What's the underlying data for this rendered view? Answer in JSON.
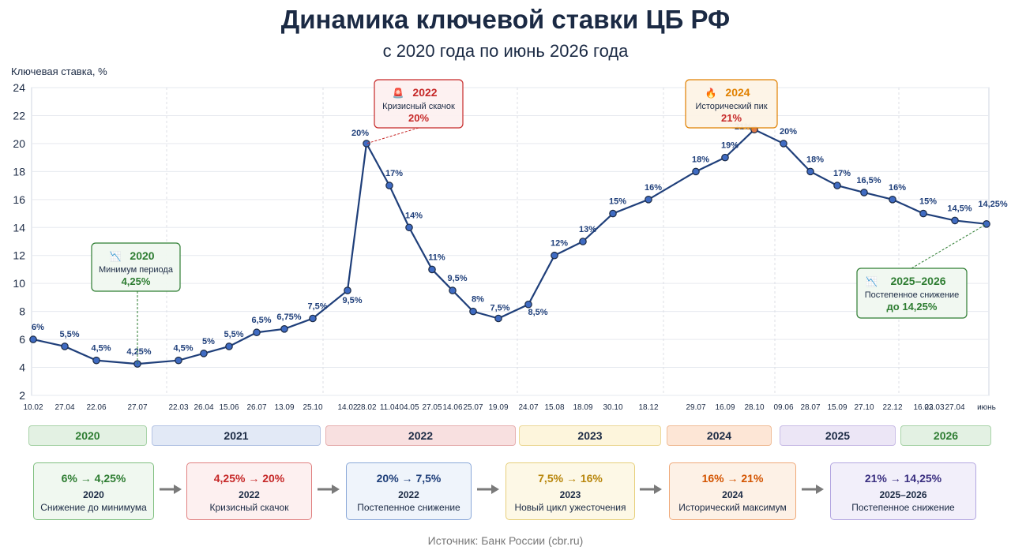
{
  "page": {
    "title": "Динамика ключевой ставки ЦБ РФ",
    "subtitle": "с 2020 года по июнь 2026 года",
    "source": "Источник: Банк России (cbr.ru)"
  },
  "chart_data": {
    "type": "line",
    "title": "Динамика ключевой ставки ЦБ РФ",
    "subtitle": "с 2020 года по июнь 2026 года",
    "ylabel": "Ключевая ставка, %",
    "ylim": [
      2,
      24
    ],
    "yticks": [
      2,
      4,
      6,
      8,
      10,
      12,
      14,
      16,
      18,
      20,
      22,
      24
    ],
    "grid": true,
    "line_color": "#1f3f7a",
    "points": [
      {
        "x": "10.02",
        "y": 6,
        "label": "6%",
        "tick": "10.02"
      },
      {
        "x": "27.04",
        "y": 5.5,
        "label": "5,5%",
        "tick": "27.04"
      },
      {
        "x": "22.06",
        "y": 4.5,
        "label": "4,5%",
        "tick": "22.06"
      },
      {
        "x": "27.07",
        "y": 4.25,
        "label": "4,25%",
        "tick": "27.07"
      },
      {
        "x": "22.03",
        "y": 4.5,
        "label": "4,5%",
        "tick": "22.03"
      },
      {
        "x": "26.04",
        "y": 5,
        "label": "5%",
        "tick": "26.04"
      },
      {
        "x": "15.06",
        "y": 5.5,
        "label": "5,5%",
        "tick": "15.06"
      },
      {
        "x": "26.07",
        "y": 6.5,
        "label": "6,5%",
        "tick": "26.07"
      },
      {
        "x": "13.09",
        "y": 6.75,
        "label": "6,75%",
        "tick": "13.09"
      },
      {
        "x": "25.10",
        "y": 7.5,
        "label": "7,5%",
        "tick": "25.10"
      },
      {
        "x": "14.02",
        "y": 9.5,
        "label": "9,5%",
        "tick": "14.02"
      },
      {
        "x": "28.02",
        "y": 20,
        "label": "20%",
        "tick": "28.02"
      },
      {
        "x": "11.04",
        "y": 17,
        "label": "17%",
        "tick": "11.04"
      },
      {
        "x": "04.05",
        "y": 14,
        "label": "14%",
        "tick": "04.05"
      },
      {
        "x": "27.05",
        "y": 11,
        "label": "11%",
        "tick": "27.05"
      },
      {
        "x": "14.06",
        "y": 9.5,
        "label": "9,5%",
        "tick": "14.06"
      },
      {
        "x": "25.07",
        "y": 8,
        "label": "8%",
        "tick": "25.07"
      },
      {
        "x": "19.09",
        "y": 7.5,
        "label": "7,5%",
        "tick": "19.09"
      },
      {
        "x": "24.07",
        "y": 8.5,
        "label": "8,5%",
        "tick": "24.07"
      },
      {
        "x": "15.08",
        "y": 12,
        "label": "12%",
        "tick": "15.08"
      },
      {
        "x": "18.09",
        "y": 13,
        "label": "13%",
        "tick": "18.09"
      },
      {
        "x": "30.10",
        "y": 15,
        "label": "15%",
        "tick": "30.10"
      },
      {
        "x": "18.12",
        "y": 16,
        "label": "16%",
        "tick": "18.12"
      },
      {
        "x": "29.07",
        "y": 18,
        "label": "18%",
        "tick": "29.07"
      },
      {
        "x": "16.09",
        "y": 19,
        "label": "19%",
        "tick": "16.09"
      },
      {
        "x": "28.10",
        "y": 21,
        "label": "21%",
        "tick": "28.10"
      },
      {
        "x": "09.06",
        "y": 20,
        "label": "20%",
        "tick": "09.06"
      },
      {
        "x": "28.07",
        "y": 18,
        "label": "18%",
        "tick": "28.07"
      },
      {
        "x": "15.09",
        "y": 17,
        "label": "17%",
        "tick": "15.09"
      },
      {
        "x": "27.10",
        "y": 16.5,
        "label": "16,5%",
        "tick": "27.10"
      },
      {
        "x": "22.12",
        "y": 16,
        "label": "16%",
        "tick": "22.12"
      },
      {
        "x": "16.02",
        "y": 15,
        "label": "15%",
        "tick": "16.02"
      },
      {
        "x": "27.04",
        "y": 14.5,
        "label": "14,5%",
        "tick": "27.04"
      },
      {
        "x": "июнь",
        "y": 14.25,
        "label": "14,25%",
        "tick": "июнь"
      }
    ],
    "extra_ticks": [
      "23.03"
    ],
    "annotations": [
      {
        "icon": "chart-down-icon",
        "year": "2020",
        "text": "Минимум периода",
        "value": "4,25%",
        "color": "#2e7d32",
        "point": 3
      },
      {
        "icon": "siren-icon",
        "year": "2022",
        "text": "Кризисный скачок",
        "value": "20%",
        "color": "#c62828",
        "point": 11
      },
      {
        "icon": "fire-icon",
        "year": "2024",
        "text": "Исторический пик",
        "value": "21%",
        "color": "#e08000",
        "point": 25
      },
      {
        "icon": "chart-down-icon",
        "year": "2025–2026",
        "text": "Постепенное снижение",
        "value": "до 14,25%",
        "color": "#2e7d32",
        "point": 33
      }
    ]
  },
  "year_bands": [
    {
      "label": "2020",
      "color": "#2e7d32",
      "bg": "#e3f1e3",
      "border": "#a9d3a9"
    },
    {
      "label": "2021",
      "color": "#1b2a44",
      "bg": "#e2e9f6",
      "border": "#b4c4e4"
    },
    {
      "label": "2022",
      "color": "#1b2a44",
      "bg": "#f8e0e0",
      "border": "#e6b0b0"
    },
    {
      "label": "2023",
      "color": "#1b2a44",
      "bg": "#fdf5dc",
      "border": "#ecd898"
    },
    {
      "label": "2024",
      "color": "#1b2a44",
      "bg": "#fde6d6",
      "border": "#f0bd98"
    },
    {
      "label": "2025",
      "color": "#1b2a44",
      "bg": "#ece6f6",
      "border": "#c9bde6"
    },
    {
      "label": "2026",
      "color": "#2e7d32",
      "bg": "#e3f1e3",
      "border": "#a9d3a9"
    }
  ],
  "summary": [
    {
      "change": "6% → 4,25%",
      "year": "2020",
      "desc": "Снижение до минимума",
      "color": "#2e7d32",
      "bg": "#f0f8f0",
      "border": "#7fbf7f"
    },
    {
      "change": "4,25% → 20%",
      "year": "2022",
      "desc": "Кризисный скачок",
      "color": "#c62828",
      "bg": "#fdf0f0",
      "border": "#e08080"
    },
    {
      "change": "20% → 7,5%",
      "year": "2022",
      "desc": "Постепенное снижение",
      "color": "#1f3f7a",
      "bg": "#eff4fb",
      "border": "#8aa8d8"
    },
    {
      "change": "7,5% → 16%",
      "year": "2023",
      "desc": "Новый цикл ужесточения",
      "color": "#b8860b",
      "bg": "#fdf8e6",
      "border": "#e6cf7a"
    },
    {
      "change": "16% → 21%",
      "year": "2024",
      "desc": "Исторический максимум",
      "color": "#d35400",
      "bg": "#fdf1e6",
      "border": "#efa878"
    },
    {
      "change": "21% → 14,25%",
      "year": "2025–2026",
      "desc": "Постепенное снижение",
      "color": "#3a2f80",
      "bg": "#f2effa",
      "border": "#b3a6e0"
    }
  ]
}
